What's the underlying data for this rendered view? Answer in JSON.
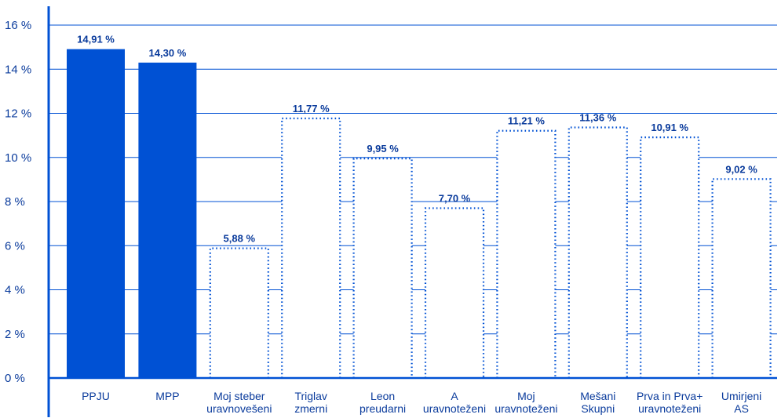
{
  "chart_data": {
    "type": "bar",
    "title": "",
    "xlabel": "",
    "ylabel": "",
    "ylim": [
      0,
      16
    ],
    "ytick_values": [
      0,
      2,
      4,
      6,
      8,
      10,
      12,
      14,
      16
    ],
    "ytick_labels": [
      "0 %",
      "2 %",
      "4 %",
      "6 %",
      "8 %",
      "10 %",
      "12 %",
      "14 %",
      "16 %"
    ],
    "grid": true,
    "legend": "none",
    "categories": [
      [
        "PPJU"
      ],
      [
        "MPP"
      ],
      [
        "Moj steber",
        "uravnovešeni"
      ],
      [
        "Triglav",
        "zmerni"
      ],
      [
        "Leon",
        "preudarni"
      ],
      [
        "A",
        "uravnoteženi"
      ],
      [
        "Moj",
        "uravnoteženi"
      ],
      [
        "Mešani",
        "Skupni"
      ],
      [
        "Prva in Prva+",
        "uravnoteženi"
      ],
      [
        "Umirjeni",
        "AS"
      ]
    ],
    "values": [
      14.91,
      14.3,
      5.88,
      11.77,
      9.95,
      7.7,
      11.21,
      11.36,
      10.91,
      9.02
    ],
    "value_labels": [
      "14,91 %",
      "14,30 %",
      "5,88 %",
      "11,77 %",
      "9,95 %",
      "7,70 %",
      "11,21 %",
      "11,36 %",
      "10,91 %",
      "9,02 %"
    ],
    "bar_styles": [
      "solid",
      "solid",
      "dotted",
      "dotted",
      "dotted",
      "dotted",
      "dotted",
      "dotted",
      "dotted",
      "dotted"
    ],
    "colors": {
      "accent": "#0051D4",
      "grid": "#0051D4",
      "text": "#0A3B9C"
    }
  }
}
